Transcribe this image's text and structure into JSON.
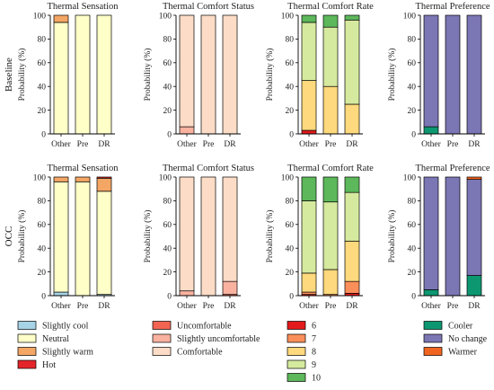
{
  "rows": [
    {
      "label": "Baseline"
    },
    {
      "label": "OCC"
    }
  ],
  "ylabel": "Probability (%)",
  "categories": [
    "Other",
    "Pre",
    "DR"
  ],
  "yticks": [
    "0",
    "20",
    "40",
    "60",
    "80",
    "100"
  ],
  "colors": {
    "Slightly cool": "#a6d3e6",
    "Neutral": "#ffffc8",
    "Slightly warm": "#f4a665",
    "Hot": "#e3252a",
    "Uncomfortable": "#f26451",
    "Slightly uncomfortable": "#f9b2a0",
    "Comfortable": "#fcdcc6",
    "6": "#e31a1c",
    "7": "#fb8f5a",
    "8": "#fed97d",
    "9": "#d6ea9f",
    "10": "#5cb85a",
    "Cooler": "#0d9771",
    "No change": "#7b76b4",
    "Warmer": "#f0651f"
  },
  "chart_data": [
    {
      "type": "bar",
      "stacked": true,
      "row": "Baseline",
      "title": "Thermal Sensation",
      "ylabel": "Probability (%)",
      "ylim": [
        0,
        100
      ],
      "categories": [
        "Other",
        "Pre",
        "DR"
      ],
      "series": [
        {
          "name": "Slightly cool",
          "values": [
            0,
            0,
            0
          ]
        },
        {
          "name": "Neutral",
          "values": [
            94,
            100,
            100
          ]
        },
        {
          "name": "Slightly warm",
          "values": [
            6,
            0,
            0
          ]
        },
        {
          "name": "Hot",
          "values": [
            0,
            0,
            0
          ]
        }
      ]
    },
    {
      "type": "bar",
      "stacked": true,
      "row": "Baseline",
      "title": "Thermal Comfort Status",
      "ylabel": "Probability (%)",
      "ylim": [
        0,
        100
      ],
      "categories": [
        "Other",
        "Pre",
        "DR"
      ],
      "series": [
        {
          "name": "Uncomfortable",
          "values": [
            0,
            0,
            0
          ]
        },
        {
          "name": "Slightly uncomfortable",
          "values": [
            6,
            0,
            0
          ]
        },
        {
          "name": "Comfortable",
          "values": [
            94,
            100,
            100
          ]
        }
      ]
    },
    {
      "type": "bar",
      "stacked": true,
      "row": "Baseline",
      "title": "Thermal Comfort Rate",
      "ylabel": "Probability (%)",
      "ylim": [
        0,
        100
      ],
      "categories": [
        "Other",
        "Pre",
        "DR"
      ],
      "series": [
        {
          "name": "6",
          "values": [
            3,
            0,
            0
          ]
        },
        {
          "name": "7",
          "values": [
            0,
            0,
            0
          ]
        },
        {
          "name": "8",
          "values": [
            42,
            40,
            25
          ]
        },
        {
          "name": "9",
          "values": [
            49,
            50,
            71
          ]
        },
        {
          "name": "10",
          "values": [
            6,
            10,
            4
          ]
        }
      ]
    },
    {
      "type": "bar",
      "stacked": true,
      "row": "Baseline",
      "title": "Thermal Preference",
      "ylabel": "Probability (%)",
      "ylim": [
        0,
        100
      ],
      "categories": [
        "Other",
        "Pre",
        "DR"
      ],
      "series": [
        {
          "name": "Cooler",
          "values": [
            6,
            0,
            0
          ]
        },
        {
          "name": "No change",
          "values": [
            94,
            100,
            100
          ]
        },
        {
          "name": "Warmer",
          "values": [
            0,
            0,
            0
          ]
        }
      ]
    },
    {
      "type": "bar",
      "stacked": true,
      "row": "OCC",
      "title": "Thermal Sensation",
      "ylabel": "Probability (%)",
      "ylim": [
        0,
        100
      ],
      "categories": [
        "Other",
        "Pre",
        "DR"
      ],
      "series": [
        {
          "name": "Slightly cool",
          "values": [
            3,
            0,
            1
          ]
        },
        {
          "name": "Neutral",
          "values": [
            93,
            96,
            87
          ]
        },
        {
          "name": "Slightly warm",
          "values": [
            4,
            4,
            11
          ]
        },
        {
          "name": "Hot",
          "values": [
            0,
            0,
            1
          ]
        }
      ]
    },
    {
      "type": "bar",
      "stacked": true,
      "row": "OCC",
      "title": "Thermal Comfort Status",
      "ylabel": "Probability (%)",
      "ylim": [
        0,
        100
      ],
      "categories": [
        "Other",
        "Pre",
        "DR"
      ],
      "series": [
        {
          "name": "Uncomfortable",
          "values": [
            0,
            0,
            1
          ]
        },
        {
          "name": "Slightly uncomfortable",
          "values": [
            4,
            0,
            11
          ]
        },
        {
          "name": "Comfortable",
          "values": [
            96,
            100,
            88
          ]
        }
      ]
    },
    {
      "type": "bar",
      "stacked": true,
      "row": "OCC",
      "title": "Thermal Comfort Rate",
      "ylabel": "Probability (%)",
      "ylim": [
        0,
        100
      ],
      "categories": [
        "Other",
        "Pre",
        "DR"
      ],
      "series": [
        {
          "name": "6",
          "values": [
            1,
            0,
            2
          ]
        },
        {
          "name": "7",
          "values": [
            2,
            1,
            10
          ]
        },
        {
          "name": "8",
          "values": [
            16,
            21,
            34
          ]
        },
        {
          "name": "9",
          "values": [
            61,
            57,
            41
          ]
        },
        {
          "name": "10",
          "values": [
            20,
            21,
            13
          ]
        }
      ]
    },
    {
      "type": "bar",
      "stacked": true,
      "row": "OCC",
      "title": "Thermal Preference",
      "ylabel": "Probability (%)",
      "ylim": [
        0,
        100
      ],
      "categories": [
        "Other",
        "Pre",
        "DR"
      ],
      "series": [
        {
          "name": "Cooler",
          "values": [
            5,
            0,
            17
          ]
        },
        {
          "name": "No change",
          "values": [
            95,
            100,
            81
          ]
        },
        {
          "name": "Warmer",
          "values": [
            0,
            0,
            2
          ]
        }
      ]
    }
  ],
  "legend": [
    [
      "Slightly cool",
      "Neutral",
      "Slightly warm",
      "Hot"
    ],
    [
      "Uncomfortable",
      "Slightly uncomfortable",
      "Comfortable"
    ],
    [
      "6",
      "7",
      "8",
      "9",
      "10"
    ],
    [
      "Cooler",
      "No change",
      "Warmer"
    ]
  ]
}
